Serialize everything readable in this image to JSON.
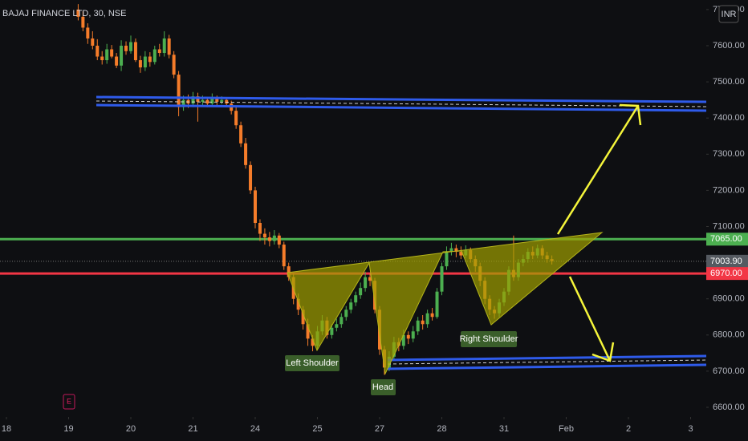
{
  "chart_data": {
    "type": "candlestick",
    "title": "BAJAJ FINANCE LTD, 30, NSE",
    "currency": "INR",
    "x": [
      15,
      16,
      17,
      18,
      19,
      20,
      21,
      22,
      23,
      24,
      25,
      26,
      27,
      28,
      29,
      30,
      31,
      32,
      33,
      34,
      35,
      36,
      37,
      38,
      39,
      40,
      41,
      42,
      43,
      44,
      45,
      46,
      47,
      48,
      49,
      50,
      51,
      52,
      53,
      54,
      55,
      56,
      57,
      58,
      59,
      60,
      61,
      62,
      63,
      64,
      65,
      66,
      67,
      68,
      69,
      70,
      71,
      72,
      73,
      74,
      75,
      76,
      77,
      78,
      79,
      80,
      81,
      82,
      83,
      84,
      85,
      86,
      87,
      88,
      89,
      90,
      91,
      92,
      93,
      94,
      95,
      96,
      97,
      98,
      99,
      100,
      101,
      102,
      103,
      104,
      105,
      106,
      107,
      108,
      109,
      110,
      111,
      112,
      113,
      114
    ],
    "open": [
      7700,
      7680,
      7650,
      7620,
      7600,
      7570,
      7560,
      7590,
      7570,
      7545,
      7600,
      7585,
      7610,
      7560,
      7540,
      7570,
      7555,
      7590,
      7580,
      7620,
      7575,
      7520,
      7430,
      7450,
      7440,
      7460,
      7445,
      7450,
      7440,
      7455,
      7445,
      7450,
      7440,
      7420,
      7380,
      7330,
      7270,
      7200,
      7110,
      7080,
      7070,
      7060,
      7075,
      7050,
      6990,
      6960,
      6900,
      6870,
      6830,
      6790,
      6770,
      6810,
      6840,
      6800,
      6820,
      6830,
      6850,
      6870,
      6890,
      6910,
      6930,
      6960,
      6950,
      6870,
      6760,
      6710,
      6740,
      6780,
      6770,
      6800,
      6790,
      6810,
      6840,
      6830,
      6860,
      6850,
      6920,
      6990,
      7030,
      7040,
      7030,
      7020,
      7035,
      7010,
      6990,
      6950,
      6900,
      6870,
      6860,
      6890,
      6920,
      6980,
      6960,
      7000,
      7010,
      7030,
      7020,
      7040,
      7020,
      7010
    ],
    "high": [
      7715,
      7695,
      7662,
      7640,
      7618,
      7585,
      7605,
      7602,
      7580,
      7615,
      7612,
      7628,
      7620,
      7572,
      7585,
      7582,
      7600,
      7605,
      7640,
      7630,
      7585,
      7530,
      7462,
      7465,
      7472,
      7470,
      7462,
      7458,
      7468,
      7462,
      7460,
      7458,
      7448,
      7430,
      7390,
      7345,
      7280,
      7210,
      7120,
      7095,
      7085,
      7090,
      7082,
      7058,
      7000,
      6970,
      6915,
      6880,
      6845,
      6800,
      6825,
      6855,
      6850,
      6830,
      6845,
      6860,
      6880,
      6900,
      6920,
      6945,
      6975,
      6970,
      6958,
      6880,
      6770,
      6755,
      6795,
      6792,
      6815,
      6810,
      6825,
      6850,
      6855,
      6870,
      6875,
      6930,
      7000,
      7045,
      7055,
      7050,
      7045,
      7048,
      7042,
      7020,
      7000,
      6960,
      6910,
      6880,
      6900,
      6930,
      6990,
      7075,
      7010,
      7022,
      7040,
      7045,
      7050,
      7048,
      7030,
      7020
    ],
    "low": [
      7670,
      7640,
      7605,
      7590,
      7560,
      7548,
      7550,
      7565,
      7538,
      7530,
      7575,
      7578,
      7555,
      7525,
      7530,
      7542,
      7548,
      7570,
      7570,
      7565,
      7510,
      7405,
      7420,
      7428,
      7430,
      7390,
      7435,
      7430,
      7432,
      7436,
      7438,
      7430,
      7410,
      7370,
      7320,
      7260,
      7190,
      7095,
      7060,
      7050,
      7045,
      7050,
      7040,
      6980,
      6950,
      6885,
      6855,
      6815,
      6770,
      6755,
      6760,
      6800,
      6790,
      6790,
      6810,
      6820,
      6840,
      6860,
      6880,
      6900,
      6920,
      6935,
      6860,
      6745,
      6690,
      6700,
      6730,
      6755,
      6760,
      6775,
      6780,
      6800,
      6815,
      6820,
      6840,
      6845,
      6910,
      6980,
      7020,
      7015,
      7010,
      7012,
      7000,
      6975,
      6935,
      6885,
      6855,
      6845,
      6850,
      6880,
      6910,
      6950,
      6950,
      6990,
      7000,
      7010,
      7012,
      7010,
      7000,
      6995
    ],
    "close": [
      7680,
      7650,
      7620,
      7600,
      7570,
      7560,
      7590,
      7570,
      7545,
      7600,
      7585,
      7610,
      7560,
      7540,
      7570,
      7555,
      7590,
      7580,
      7620,
      7575,
      7520,
      7430,
      7450,
      7440,
      7460,
      7445,
      7450,
      7440,
      7455,
      7445,
      7450,
      7440,
      7420,
      7380,
      7330,
      7270,
      7200,
      7110,
      7080,
      7070,
      7060,
      7075,
      7050,
      6990,
      6960,
      6900,
      6870,
      6830,
      6790,
      6770,
      6810,
      6840,
      6800,
      6820,
      6830,
      6850,
      6870,
      6890,
      6910,
      6930,
      6960,
      6950,
      6870,
      6760,
      6710,
      6740,
      6780,
      6770,
      6800,
      6790,
      6810,
      6840,
      6830,
      6860,
      6850,
      6920,
      6990,
      7030,
      7040,
      7030,
      7020,
      7035,
      7010,
      6990,
      6950,
      6900,
      6870,
      6860,
      6890,
      6920,
      6980,
      6960,
      7000,
      7010,
      7030,
      7020,
      7040,
      7020,
      7010,
      7004
    ],
    "up_color": "#4caf50",
    "down_color": "#f57c2a",
    "xlim": [
      -1.34,
      146.27
    ],
    "ylim": [
      6573.4,
      7726.4
    ],
    "xticks": [
      {
        "value": 0,
        "label": "18"
      },
      {
        "value": 13,
        "label": "19"
      },
      {
        "value": 26,
        "label": "20"
      },
      {
        "value": 39,
        "label": "21"
      },
      {
        "value": 52,
        "label": "24"
      },
      {
        "value": 65,
        "label": "25"
      },
      {
        "value": 78,
        "label": "27"
      },
      {
        "value": 91,
        "label": "28"
      },
      {
        "value": 104,
        "label": "31"
      },
      {
        "value": 117,
        "label": "Feb"
      },
      {
        "value": 130,
        "label": "2"
      },
      {
        "value": 143,
        "label": "3"
      }
    ],
    "yticks": [
      {
        "value": 6600,
        "label": "6600.00"
      },
      {
        "value": 6700,
        "label": "6700.00"
      },
      {
        "value": 6800,
        "label": "6800.00"
      },
      {
        "value": 6900,
        "label": "6900.00"
      },
      {
        "value": 7000,
        "label": "7000.00"
      },
      {
        "value": 7100,
        "label": "7100.00"
      },
      {
        "value": 7200,
        "label": "7200.00"
      },
      {
        "value": 7300,
        "label": "7300.00"
      },
      {
        "value": 7400,
        "label": "7400.00"
      },
      {
        "value": 7500,
        "label": "7500.00"
      },
      {
        "value": 7600,
        "label": "7600.00"
      },
      {
        "value": 7700,
        "label": "7700.00"
      }
    ],
    "levels": [
      {
        "value": 7065,
        "label": "7065.00",
        "color": "#4caf50",
        "style": "solid"
      },
      {
        "value": 7003.9,
        "label": "7003.90",
        "color": "#555a61",
        "style": "dotted"
      },
      {
        "value": 6970,
        "label": "6970.00",
        "color": "#f23645",
        "style": "solid"
      }
    ],
    "annotations": [
      "Left Shoulder",
      "Head",
      "Right Shoulder"
    ]
  }
}
